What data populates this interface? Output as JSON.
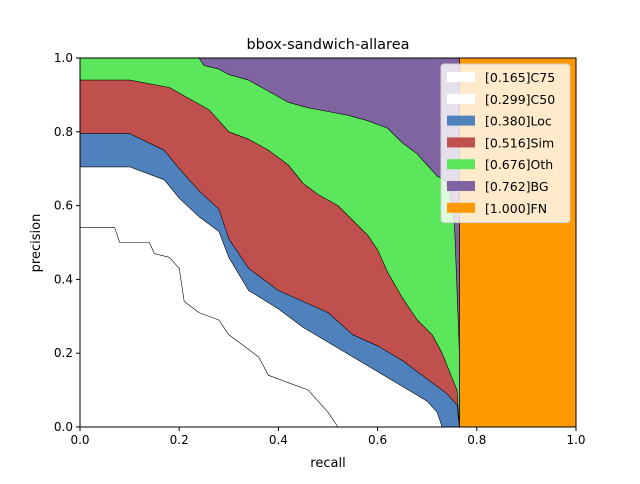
{
  "chart_data": {
    "type": "area",
    "title": "bbox-sandwich-allarea",
    "xlabel": "recall",
    "ylabel": "precision",
    "xlim": [
      0.0,
      1.0
    ],
    "ylim": [
      0.0,
      1.0
    ],
    "xticks": [
      "0.0",
      "0.2",
      "0.4",
      "0.6",
      "0.8",
      "1.0"
    ],
    "yticks": [
      "0.0",
      "0.2",
      "0.4",
      "0.6",
      "0.8",
      "1.0"
    ],
    "grid": false,
    "legend_position": "top-right",
    "series": [
      {
        "name": "[1.000]FN",
        "color": "#ff9900",
        "points": [
          [
            0.765,
            1.0
          ],
          [
            1.0,
            1.0
          ],
          [
            1.0,
            0.0
          ],
          [
            0.765,
            0.0
          ]
        ]
      },
      {
        "name": "[0.762]BG",
        "color": "#8064a2",
        "points": [
          [
            0.0,
            1.0
          ],
          [
            0.765,
            1.0
          ],
          [
            0.765,
            0.0
          ],
          [
            0.0,
            0.0
          ]
        ]
      },
      {
        "name": "[0.676]Oth",
        "color": "#5ce65c",
        "points": [
          [
            0.0,
            1.0
          ],
          [
            0.24,
            1.0
          ],
          [
            0.25,
            0.98
          ],
          [
            0.28,
            0.97
          ],
          [
            0.3,
            0.955
          ],
          [
            0.34,
            0.94
          ],
          [
            0.38,
            0.91
          ],
          [
            0.42,
            0.88
          ],
          [
            0.46,
            0.865
          ],
          [
            0.5,
            0.855
          ],
          [
            0.54,
            0.845
          ],
          [
            0.58,
            0.83
          ],
          [
            0.62,
            0.81
          ],
          [
            0.65,
            0.77
          ],
          [
            0.68,
            0.74
          ],
          [
            0.7,
            0.71
          ],
          [
            0.72,
            0.68
          ],
          [
            0.735,
            0.67
          ],
          [
            0.745,
            0.64
          ],
          [
            0.755,
            0.55
          ],
          [
            0.765,
            0.2
          ],
          [
            0.765,
            0.0
          ],
          [
            0.0,
            0.0
          ]
        ]
      },
      {
        "name": "[0.516]Sim",
        "color": "#c0504d",
        "points": [
          [
            0.0,
            0.94
          ],
          [
            0.1,
            0.94
          ],
          [
            0.18,
            0.92
          ],
          [
            0.22,
            0.89
          ],
          [
            0.26,
            0.86
          ],
          [
            0.3,
            0.8
          ],
          [
            0.34,
            0.78
          ],
          [
            0.38,
            0.75
          ],
          [
            0.42,
            0.71
          ],
          [
            0.45,
            0.66
          ],
          [
            0.48,
            0.63
          ],
          [
            0.52,
            0.6
          ],
          [
            0.55,
            0.56
          ],
          [
            0.58,
            0.52
          ],
          [
            0.6,
            0.48
          ],
          [
            0.62,
            0.42
          ],
          [
            0.65,
            0.35
          ],
          [
            0.68,
            0.29
          ],
          [
            0.71,
            0.25
          ],
          [
            0.73,
            0.2
          ],
          [
            0.745,
            0.15
          ],
          [
            0.76,
            0.1
          ],
          [
            0.765,
            0.0
          ],
          [
            0.0,
            0.0
          ]
        ]
      },
      {
        "name": "[0.380]Loc",
        "color": "#4f81bd",
        "points": [
          [
            0.0,
            0.795
          ],
          [
            0.1,
            0.795
          ],
          [
            0.17,
            0.75
          ],
          [
            0.2,
            0.7
          ],
          [
            0.24,
            0.64
          ],
          [
            0.28,
            0.59
          ],
          [
            0.3,
            0.51
          ],
          [
            0.34,
            0.43
          ],
          [
            0.4,
            0.37
          ],
          [
            0.45,
            0.34
          ],
          [
            0.5,
            0.31
          ],
          [
            0.55,
            0.25
          ],
          [
            0.6,
            0.22
          ],
          [
            0.65,
            0.18
          ],
          [
            0.7,
            0.13
          ],
          [
            0.74,
            0.09
          ],
          [
            0.76,
            0.06
          ],
          [
            0.765,
            0.0
          ],
          [
            0.0,
            0.0
          ]
        ]
      },
      {
        "name": "[0.299]C50",
        "color": "#ffffff",
        "points": [
          [
            0.0,
            0.705
          ],
          [
            0.1,
            0.705
          ],
          [
            0.17,
            0.67
          ],
          [
            0.2,
            0.62
          ],
          [
            0.24,
            0.57
          ],
          [
            0.28,
            0.53
          ],
          [
            0.3,
            0.46
          ],
          [
            0.34,
            0.37
          ],
          [
            0.4,
            0.32
          ],
          [
            0.45,
            0.27
          ],
          [
            0.5,
            0.23
          ],
          [
            0.55,
            0.19
          ],
          [
            0.6,
            0.15
          ],
          [
            0.65,
            0.11
          ],
          [
            0.7,
            0.07
          ],
          [
            0.72,
            0.04
          ],
          [
            0.73,
            0.0
          ],
          [
            0.0,
            0.0
          ]
        ]
      },
      {
        "name": "[0.165]C75",
        "color": "#ffffff",
        "points": [
          [
            0.0,
            0.54
          ],
          [
            0.07,
            0.54
          ],
          [
            0.08,
            0.5
          ],
          [
            0.14,
            0.5
          ],
          [
            0.15,
            0.47
          ],
          [
            0.18,
            0.46
          ],
          [
            0.2,
            0.43
          ],
          [
            0.21,
            0.34
          ],
          [
            0.24,
            0.31
          ],
          [
            0.28,
            0.29
          ],
          [
            0.3,
            0.25
          ],
          [
            0.33,
            0.22
          ],
          [
            0.36,
            0.19
          ],
          [
            0.38,
            0.14
          ],
          [
            0.42,
            0.12
          ],
          [
            0.46,
            0.1
          ],
          [
            0.48,
            0.07
          ],
          [
            0.5,
            0.04
          ],
          [
            0.51,
            0.02
          ],
          [
            0.52,
            0.0
          ],
          [
            0.0,
            0.0
          ]
        ]
      }
    ]
  }
}
